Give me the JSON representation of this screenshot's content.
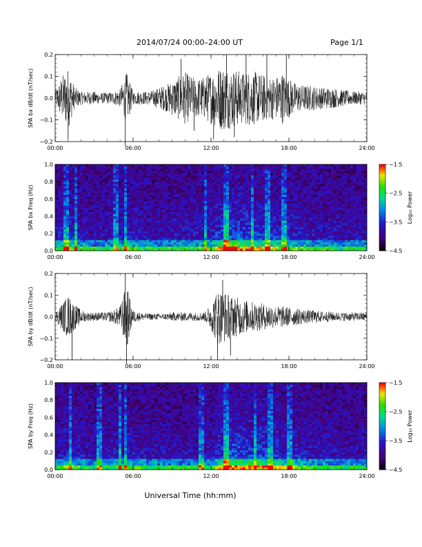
{
  "header": {
    "title": "2014/07/24  00:00–24:00 UT",
    "page": "Page 1/1"
  },
  "footer": {
    "xlabel": "Universal Time (hh:mm)"
  },
  "chart_data": [
    {
      "type": "line",
      "ylabel": "SPA bx dB/dt (nT/sec)",
      "x": [
        "00:00",
        "06:00",
        "12:00",
        "18:00",
        "24:00"
      ],
      "xlim": [
        0,
        24
      ],
      "ylim": [
        -0.2,
        0.2
      ],
      "yticks": [
        -0.2,
        -0.1,
        0.0,
        0.1,
        0.2
      ],
      "ytick_labels": [
        "−0.2",
        "−0.1",
        "0.0",
        "0.1",
        "0.2"
      ],
      "envelope": {
        "hours": [
          0,
          0.5,
          1,
          1.5,
          2,
          2.5,
          3,
          3.5,
          4,
          4.5,
          5,
          5.5,
          6,
          6.5,
          7,
          7.5,
          8,
          8.5,
          9,
          9.5,
          10,
          10.5,
          11,
          11.5,
          12,
          12.5,
          13,
          13.5,
          14,
          14.5,
          15,
          15.5,
          16,
          16.5,
          17,
          17.5,
          18,
          18.5,
          19,
          19.5,
          20,
          20.5,
          21,
          21.5,
          22,
          22.5,
          23,
          23.5,
          24
        ],
        "amplitude": [
          0.03,
          0.1,
          0.14,
          0.05,
          0.03,
          0.03,
          0.03,
          0.025,
          0.025,
          0.03,
          0.04,
          0.12,
          0.03,
          0.03,
          0.03,
          0.035,
          0.05,
          0.06,
          0.08,
          0.1,
          0.12,
          0.1,
          0.09,
          0.1,
          0.12,
          0.14,
          0.15,
          0.14,
          0.13,
          0.12,
          0.13,
          0.12,
          0.11,
          0.1,
          0.1,
          0.12,
          0.09,
          0.07,
          0.06,
          0.06,
          0.055,
          0.05,
          0.05,
          0.045,
          0.04,
          0.035,
          0.03,
          0.03,
          0.03
        ]
      },
      "spikes": [
        {
          "hour": 1.0,
          "value": -0.19
        },
        {
          "hour": 5.4,
          "value": -0.22
        },
        {
          "hour": 9.7,
          "value": 0.18
        },
        {
          "hour": 12.2,
          "value": -0.19
        },
        {
          "hour": 13.2,
          "value": 0.2
        },
        {
          "hour": 13.8,
          "value": -0.18
        },
        {
          "hour": 14.7,
          "value": 0.2
        },
        {
          "hour": 16.3,
          "value": 0.2
        },
        {
          "hour": 17.8,
          "value": 0.2
        },
        {
          "hour": 10.7,
          "value": -0.15
        }
      ]
    },
    {
      "type": "heatmap",
      "ylabel": "SPA bx Freq (Hz)",
      "x": [
        "00:00",
        "06:00",
        "12:00",
        "18:00",
        "24:00"
      ],
      "xlim": [
        0,
        24
      ],
      "ylim": [
        0.0,
        1.0
      ],
      "yticks": [
        0.0,
        0.2,
        0.4,
        0.6,
        0.8,
        1.0
      ],
      "ytick_labels": [
        "0.0",
        "0.2",
        "0.4",
        "0.6",
        "0.8",
        "1.0"
      ],
      "colorbar": {
        "label": "Log₁₀ Power",
        "ticks": [
          -1.5,
          -2.5,
          -3.5,
          -4.5
        ],
        "tick_labels": [
          "−1.5",
          "−2.5",
          "−3.5",
          "−4.5"
        ],
        "range": [
          -4.5,
          -1.5
        ]
      },
      "activity_hours": [
        0,
        1,
        2,
        3,
        4,
        5,
        6,
        7,
        8,
        9,
        10,
        11,
        12,
        13,
        14,
        15,
        16,
        17,
        18,
        19,
        20,
        21,
        22,
        23,
        24
      ],
      "activity_level": [
        0.3,
        0.45,
        0.3,
        0.25,
        0.25,
        0.3,
        0.35,
        0.25,
        0.25,
        0.3,
        0.3,
        0.3,
        0.35,
        0.75,
        0.7,
        0.6,
        0.55,
        0.5,
        0.4,
        0.35,
        0.3,
        0.3,
        0.25,
        0.25,
        0.25
      ],
      "streak_hours": [
        0.8,
        1.6,
        4.7,
        5.4,
        11.6,
        13.1,
        15.2,
        16.4,
        17.6
      ]
    },
    {
      "type": "line",
      "ylabel": "SPA by dB/dt (nT/sec)",
      "x": [
        "00:00",
        "06:00",
        "12:00",
        "18:00",
        "24:00"
      ],
      "xlim": [
        0,
        24
      ],
      "ylim": [
        -0.2,
        0.2
      ],
      "yticks": [
        -0.2,
        -0.1,
        0.0,
        0.1,
        0.2
      ],
      "ytick_labels": [
        "−0.2",
        "−0.1",
        "0.0",
        "0.1",
        "0.2"
      ],
      "envelope": {
        "hours": [
          0,
          0.5,
          1,
          1.5,
          2,
          2.5,
          3,
          3.5,
          4,
          4.5,
          5,
          5.5,
          6,
          6.5,
          7,
          7.5,
          8,
          8.5,
          9,
          9.5,
          10,
          10.5,
          11,
          11.5,
          12,
          12.5,
          13,
          13.5,
          14,
          14.5,
          15,
          15.5,
          16,
          16.5,
          17,
          17.5,
          18,
          18.5,
          19,
          19.5,
          20,
          20.5,
          21,
          21.5,
          22,
          22.5,
          23,
          23.5,
          24
        ],
        "amplitude": [
          0.02,
          0.06,
          0.1,
          0.06,
          0.03,
          0.02,
          0.02,
          0.02,
          0.02,
          0.03,
          0.05,
          0.15,
          0.03,
          0.02,
          0.015,
          0.015,
          0.015,
          0.015,
          0.02,
          0.02,
          0.02,
          0.02,
          0.02,
          0.02,
          0.06,
          0.13,
          0.12,
          0.1,
          0.09,
          0.08,
          0.07,
          0.07,
          0.06,
          0.06,
          0.05,
          0.05,
          0.045,
          0.04,
          0.035,
          0.03,
          0.03,
          0.025,
          0.025,
          0.02,
          0.02,
          0.02,
          0.02,
          0.02,
          0.02
        ]
      },
      "spikes": [
        {
          "hour": 1.3,
          "value": -0.2
        },
        {
          "hour": 5.4,
          "value": 0.2
        },
        {
          "hour": 5.5,
          "value": -0.22
        },
        {
          "hour": 12.5,
          "value": -0.2
        },
        {
          "hour": 12.9,
          "value": 0.17
        },
        {
          "hour": 13.5,
          "value": -0.18
        }
      ]
    },
    {
      "type": "heatmap",
      "ylabel": "SPA by Freq (Hz)",
      "x": [
        "00:00",
        "06:00",
        "12:00",
        "18:00",
        "24:00"
      ],
      "xlim": [
        0,
        24
      ],
      "ylim": [
        0.0,
        1.0
      ],
      "yticks": [
        0.0,
        0.2,
        0.4,
        0.6,
        0.8,
        1.0
      ],
      "ytick_labels": [
        "0.0",
        "0.2",
        "0.4",
        "0.6",
        "0.8",
        "1.0"
      ],
      "colorbar": {
        "label": "Log₁₀ Power",
        "ticks": [
          -1.5,
          -2.5,
          -3.5,
          -4.5
        ],
        "tick_labels": [
          "−1.5",
          "−2.5",
          "−3.5",
          "−4.5"
        ],
        "range": [
          -4.5,
          -1.5
        ]
      },
      "activity_hours": [
        0,
        1,
        2,
        3,
        4,
        5,
        6,
        7,
        8,
        9,
        10,
        11,
        12,
        13,
        14,
        15,
        16,
        17,
        18,
        19,
        20,
        21,
        22,
        23,
        24
      ],
      "activity_level": [
        0.3,
        0.4,
        0.3,
        0.25,
        0.25,
        0.35,
        0.35,
        0.25,
        0.25,
        0.25,
        0.25,
        0.25,
        0.3,
        0.7,
        0.7,
        0.6,
        0.6,
        0.5,
        0.4,
        0.35,
        0.3,
        0.3,
        0.25,
        0.25,
        0.25
      ],
      "streak_hours": [
        1.2,
        3.4,
        5.0,
        5.4,
        11.2,
        13.1,
        15.4,
        16.5,
        18.1
      ]
    }
  ]
}
